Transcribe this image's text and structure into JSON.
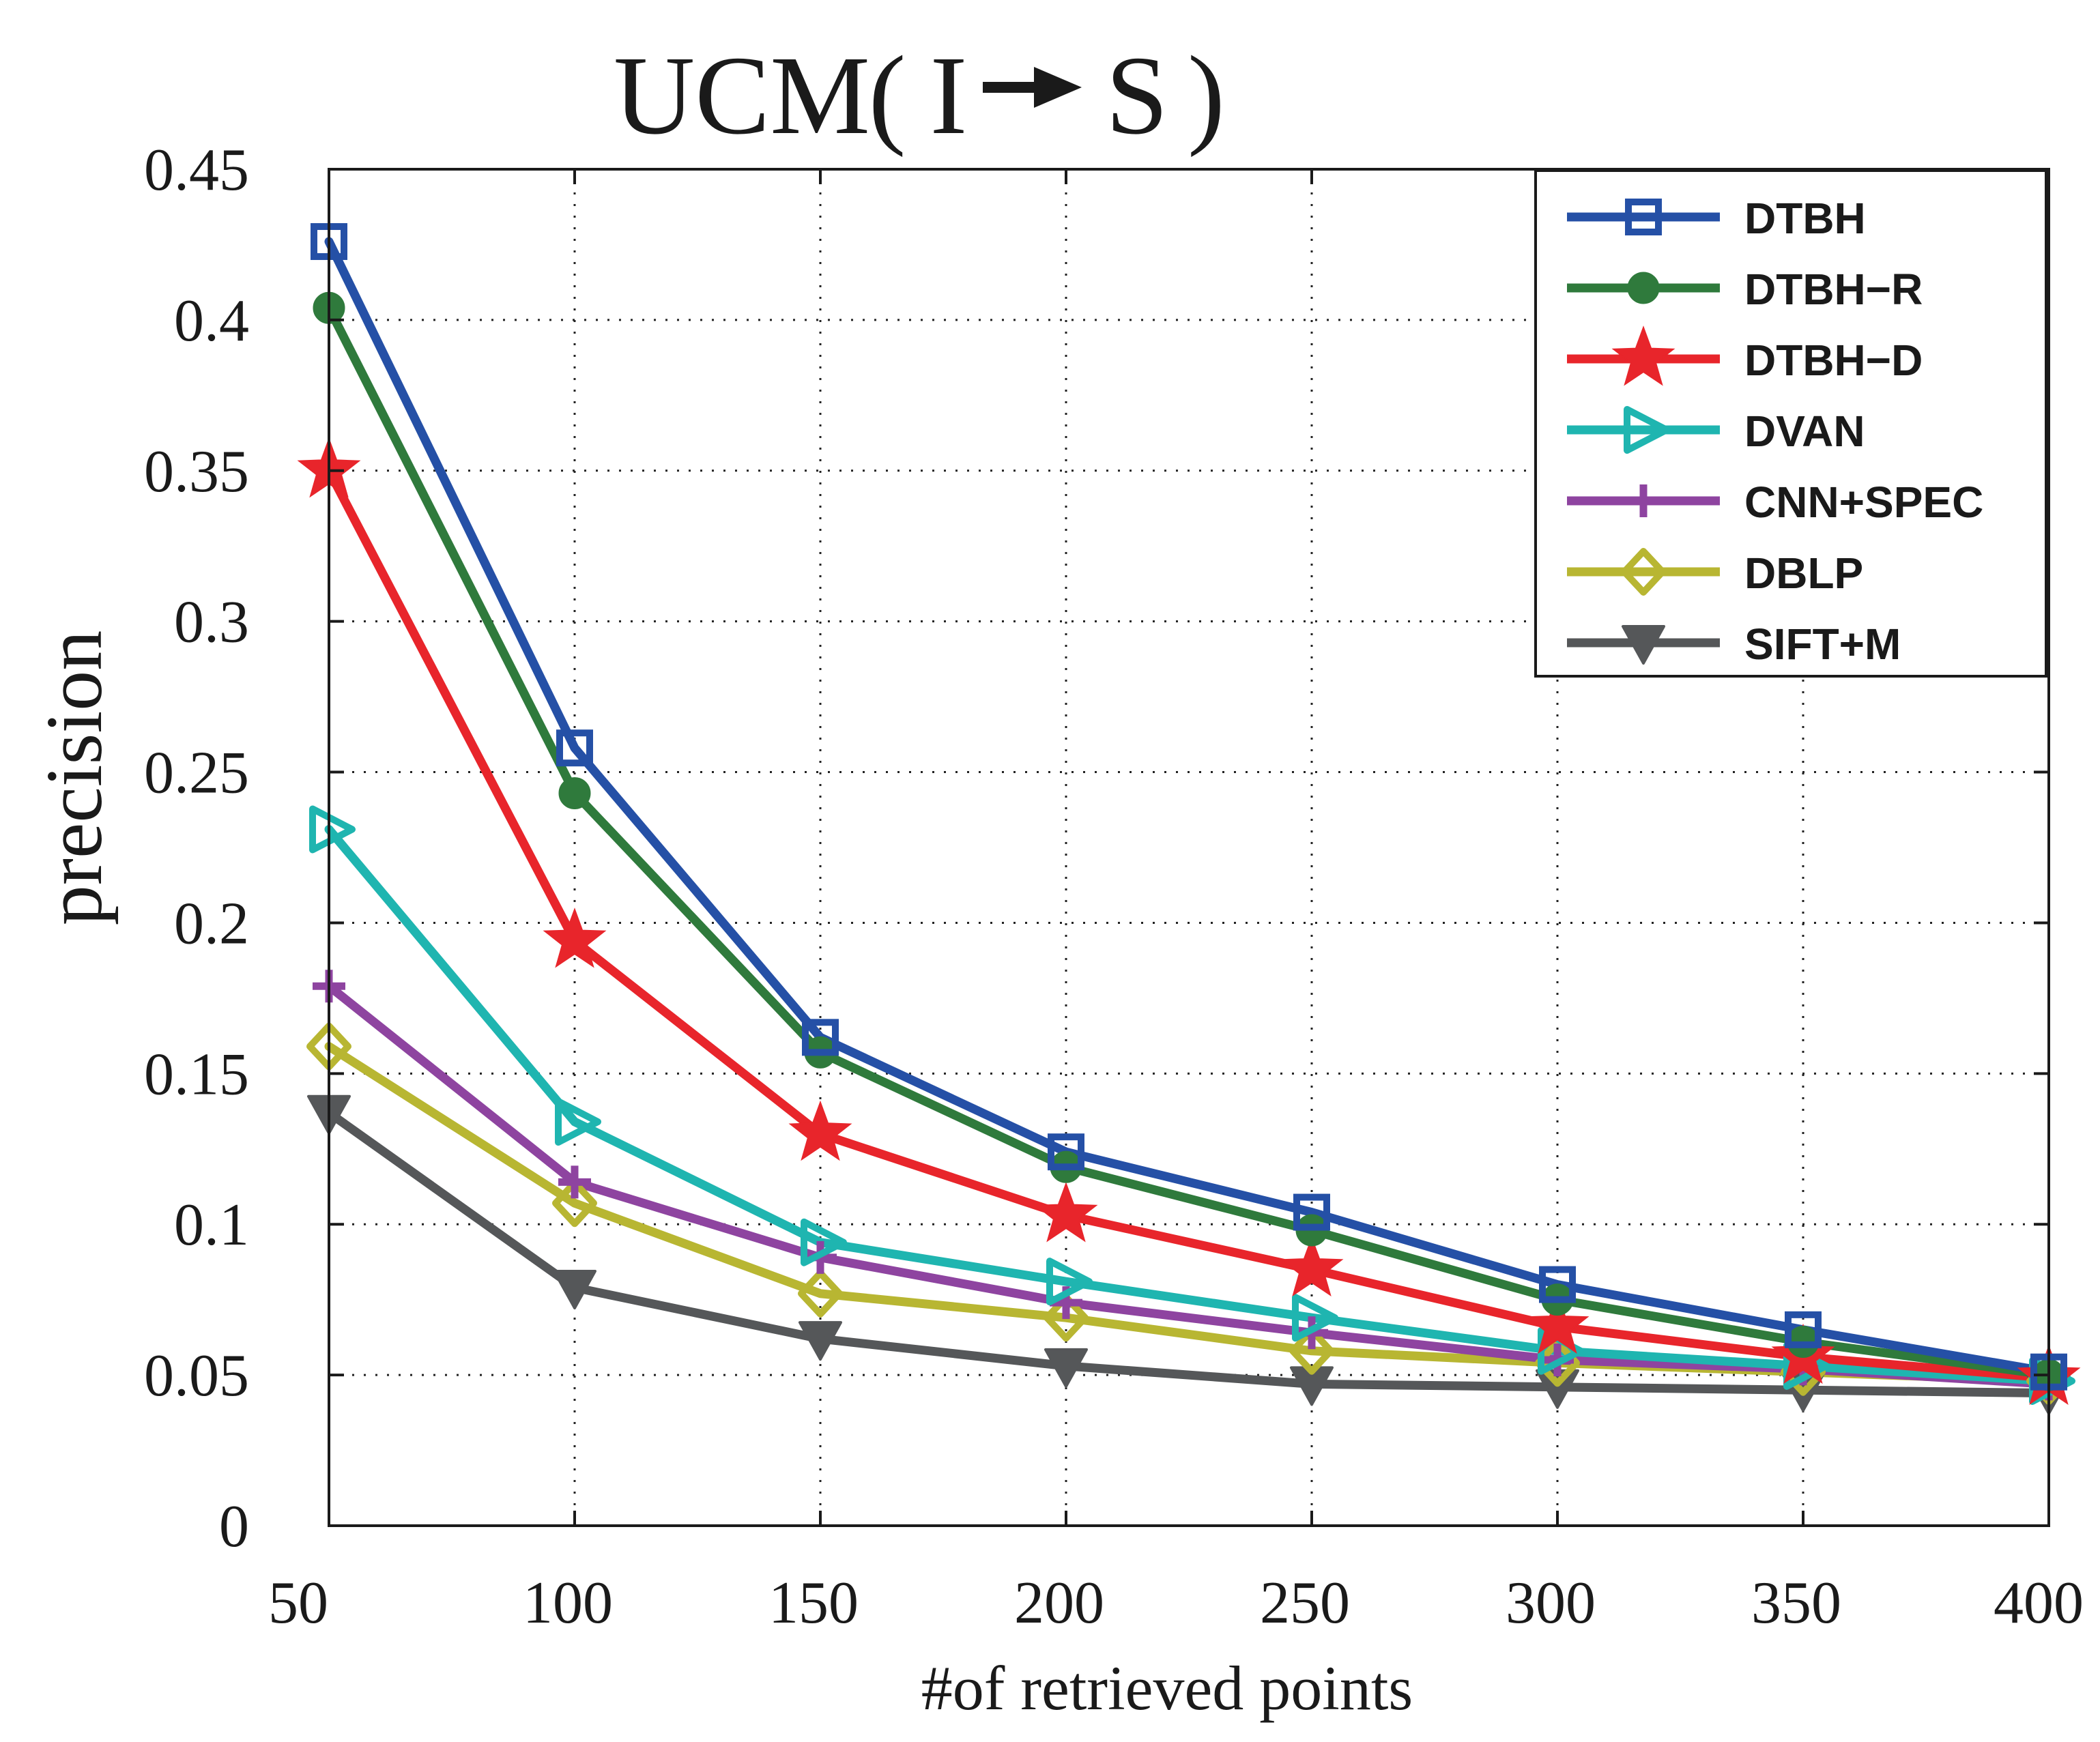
{
  "chart_data": {
    "type": "line",
    "title": "UCM(I→S)",
    "title_main": "UCM",
    "title_paren_open": "(",
    "title_from": "I",
    "title_to": "S",
    "title_paren_close": ")",
    "xlabel": "#of retrieved points",
    "ylabel": "precision",
    "x": [
      50,
      100,
      150,
      200,
      250,
      300,
      350,
      400
    ],
    "xlim": [
      50,
      400
    ],
    "ylim": [
      0,
      0.45
    ],
    "xticks": [
      "50",
      "100",
      "150",
      "200",
      "250",
      "300",
      "350",
      "400"
    ],
    "yticks": [
      "0",
      "0.05",
      "0.1",
      "0.15",
      "0.2",
      "0.25",
      "0.3",
      "0.35",
      "0.4",
      "0.45"
    ],
    "grid": true,
    "legend_position": "top-right",
    "series": [
      {
        "name": "DTBH",
        "marker": "square",
        "color": "#2550A6",
        "values": [
          0.426,
          0.258,
          0.162,
          0.124,
          0.104,
          0.08,
          0.065,
          0.051
        ]
      },
      {
        "name": "DTBH−R",
        "marker": "circle",
        "color": "#2F7A3C",
        "values": [
          0.404,
          0.243,
          0.157,
          0.119,
          0.098,
          0.075,
          0.061,
          0.05
        ]
      },
      {
        "name": "DTBH−D",
        "marker": "star",
        "color": "#E8252B",
        "values": [
          0.35,
          0.194,
          0.13,
          0.103,
          0.085,
          0.066,
          0.056,
          0.049
        ]
      },
      {
        "name": "DVAN",
        "marker": "triangle-right",
        "color": "#1FB5B0",
        "values": [
          0.231,
          0.134,
          0.094,
          0.081,
          0.069,
          0.058,
          0.053,
          0.048
        ]
      },
      {
        "name": "CNN+SPEC",
        "marker": "plus",
        "color": "#8E44A0",
        "values": [
          0.179,
          0.114,
          0.089,
          0.074,
          0.064,
          0.055,
          0.052,
          0.047
        ]
      },
      {
        "name": "DBLP",
        "marker": "diamond",
        "color": "#B8B632",
        "values": [
          0.159,
          0.107,
          0.077,
          0.069,
          0.058,
          0.054,
          0.051,
          0.048
        ]
      },
      {
        "name": "SIFT+M",
        "marker": "triangle-down",
        "color": "#555759",
        "values": [
          0.137,
          0.079,
          0.062,
          0.053,
          0.047,
          0.046,
          0.045,
          0.044
        ]
      }
    ]
  }
}
